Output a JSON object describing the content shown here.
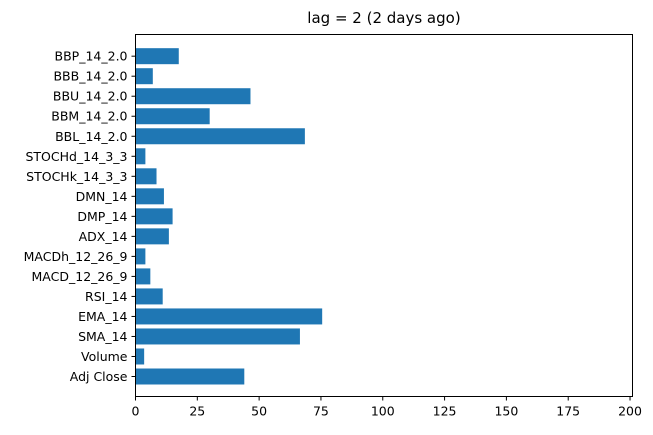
{
  "chart_data": {
    "type": "bar",
    "orientation": "horizontal",
    "title": "lag = 2 (2 days ago)",
    "xlabel": "",
    "ylabel": "",
    "categories": [
      "Adj Close",
      "Volume",
      "SMA_14",
      "EMA_14",
      "RSI_14",
      "MACD_12_26_9",
      "MACDh_12_26_9",
      "ADX_14",
      "DMP_14",
      "DMN_14",
      "STOCHk_14_3_3",
      "STOCHd_14_3_3",
      "BBL_14_2.0",
      "BBM_14_2.0",
      "BBU_14_2.0",
      "BBB_14_2.0",
      "BBP_14_2.0"
    ],
    "values": [
      44,
      3.5,
      66.5,
      75.5,
      11,
      6,
      4,
      13.5,
      15,
      11.5,
      8.5,
      4,
      68.5,
      30,
      46.5,
      7,
      17.5
    ],
    "xlim": [
      0,
      201
    ],
    "xticks": [
      0,
      25,
      50,
      75,
      100,
      125,
      150,
      175,
      200
    ],
    "grid": false,
    "bar_color": "#1f77b4"
  }
}
